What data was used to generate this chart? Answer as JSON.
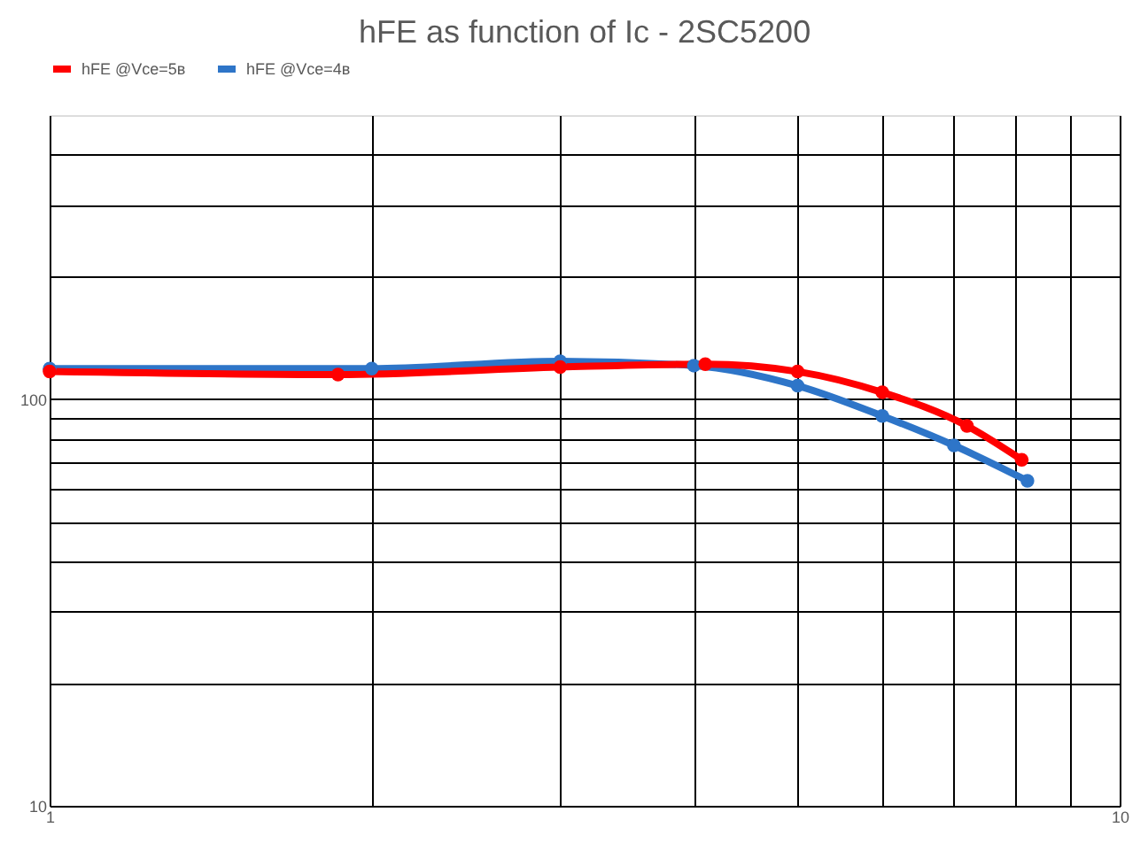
{
  "chart_data": {
    "type": "line",
    "title": "hFE as function of Ic - 2SC5200",
    "log": "xy",
    "grid": true,
    "legend": "top",
    "marker": "circle",
    "line_style": "solid",
    "xlim": [
      1,
      10
    ],
    "xticks": [
      1,
      {
        "value": 2,
        "label": null
      },
      {
        "value": 3,
        "label": null
      },
      {
        "value": 4,
        "label": null
      },
      {
        "value": 5,
        "label": null
      },
      {
        "value": 6,
        "label": null
      },
      {
        "value": 7,
        "label": null
      },
      {
        "value": 8,
        "label": null
      },
      {
        "value": 9,
        "label": null
      },
      10
    ],
    "ylim": [
      10,
      500
    ],
    "yticks": [
      10,
      {
        "value": 20,
        "label": null
      },
      {
        "value": 30,
        "label": null
      },
      {
        "value": 40,
        "label": null
      },
      {
        "value": 50,
        "label": null
      },
      {
        "value": 60,
        "label": null
      },
      {
        "value": 70,
        "label": null
      },
      {
        "value": 80,
        "label": null
      },
      {
        "value": 90,
        "label": null
      },
      100,
      {
        "value": 200,
        "label": null
      },
      {
        "value": 300,
        "label": null
      },
      {
        "value": 400,
        "label": null
      }
    ],
    "series": [
      {
        "name": "hFE @Vce=5в",
        "color": "#ff0000",
        "x": [
          1,
          1.86,
          3,
          4.1,
          5,
          6,
          7.2,
          8.1
        ],
        "values": [
          117,
          115,
          120,
          122,
          117,
          104,
          86,
          71
        ]
      },
      {
        "name": "hFE @Vce=4в",
        "color": "#2e75c8",
        "x": [
          1,
          2,
          3,
          4,
          5,
          6,
          7,
          8.2
        ],
        "values": [
          119,
          119,
          124,
          121,
          108,
          91,
          77,
          63
        ]
      }
    ]
  }
}
